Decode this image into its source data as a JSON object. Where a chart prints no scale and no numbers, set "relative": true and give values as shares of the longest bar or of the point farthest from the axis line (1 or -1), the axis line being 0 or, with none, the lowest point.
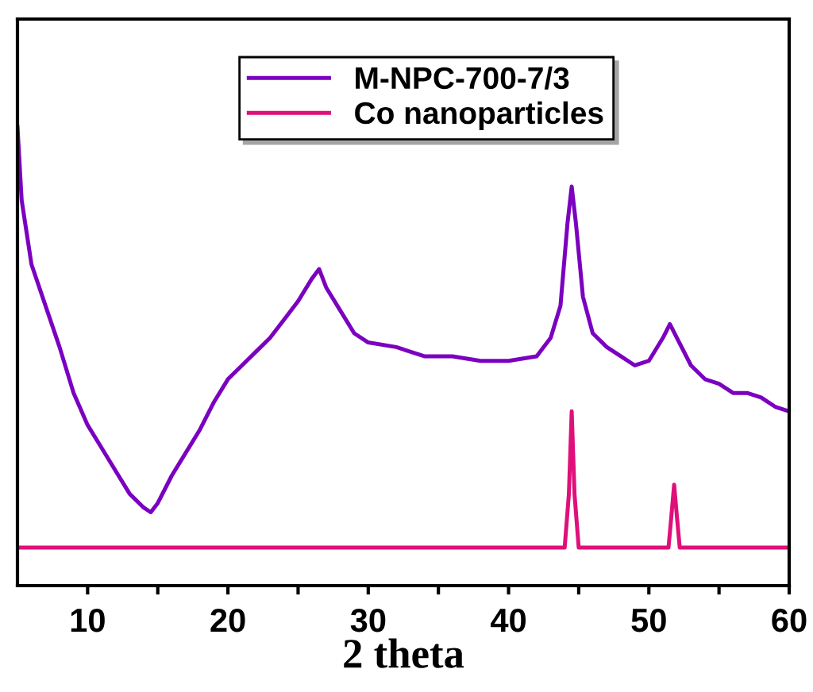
{
  "chart_data": {
    "type": "line",
    "xlabel": "2 theta",
    "relative": true,
    "tick_labels": "x",
    "legend": "top",
    "grid": false,
    "marker": "none",
    "line_style": "solid",
    "xlim": [
      5,
      60
    ],
    "xticks": [
      10,
      {
        "value": 15,
        "label": null
      },
      20,
      {
        "value": 25,
        "label": null
      },
      30,
      {
        "value": 35,
        "label": null
      },
      40,
      {
        "value": 45,
        "label": null
      },
      50,
      {
        "value": 55,
        "label": null
      },
      60
    ],
    "series": [
      {
        "name": "M-NPC-700-7/3",
        "color": "#7b00c0",
        "x": [
          5,
          5.3,
          6,
          7,
          8,
          9,
          10,
          11,
          12,
          13,
          14,
          14.5,
          15,
          16,
          17,
          18,
          19,
          20,
          21,
          22,
          23,
          24,
          25,
          26,
          26.5,
          27,
          28,
          29,
          30,
          32,
          34,
          36,
          38,
          40,
          42,
          43,
          43.7,
          44.2,
          44.5,
          44.8,
          45.3,
          46,
          47,
          48,
          49,
          50,
          51,
          51.5,
          52,
          53,
          54,
          55,
          56,
          57,
          58,
          59,
          60
        ],
        "values": [
          1.0,
          0.84,
          0.7,
          0.61,
          0.52,
          0.42,
          0.35,
          0.3,
          0.25,
          0.2,
          0.17,
          0.16,
          0.18,
          0.24,
          0.29,
          0.34,
          0.4,
          0.45,
          0.48,
          0.51,
          0.54,
          0.58,
          0.62,
          0.67,
          0.69,
          0.65,
          0.6,
          0.55,
          0.53,
          0.52,
          0.5,
          0.5,
          0.49,
          0.49,
          0.5,
          0.54,
          0.61,
          0.79,
          0.87,
          0.79,
          0.63,
          0.55,
          0.52,
          0.5,
          0.48,
          0.49,
          0.54,
          0.57,
          0.54,
          0.48,
          0.45,
          0.44,
          0.42,
          0.42,
          0.41,
          0.39,
          0.38
        ]
      },
      {
        "name": "Co nanoparticles",
        "color": "#e0107a",
        "x": [
          5,
          44.0,
          44.3,
          44.5,
          44.7,
          45.0,
          51.4,
          51.6,
          51.8,
          52.0,
          52.2,
          60
        ],
        "values": [
          0.083,
          0.083,
          0.2,
          0.38,
          0.2,
          0.083,
          0.083,
          0.15,
          0.22,
          0.15,
          0.083,
          0.083
        ]
      }
    ]
  }
}
